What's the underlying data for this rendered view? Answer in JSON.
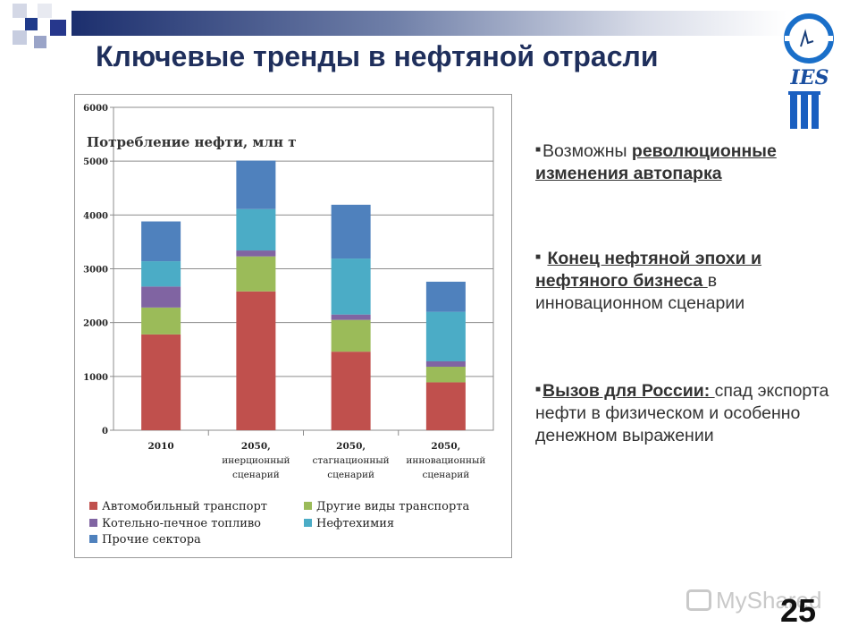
{
  "slide": {
    "title": "Ключевые тренды в нефтяной отрасли",
    "page_number": "25",
    "watermark": "MyShared",
    "logo_text": "IES"
  },
  "bullets": [
    {
      "plain_before": "Возможны ",
      "emphasis": "революционные изменения автопарка",
      "plain_after": ""
    },
    {
      "plain_before": " ",
      "emphasis": "Конец нефтяной эпохи и нефтяного бизнеса ",
      "plain_after": "в инновационном сценарии"
    },
    {
      "plain_before": "",
      "emphasis": "Вызов для России:  ",
      "plain_after": "спад экспорта нефти в физическом и особенно денежном выражении"
    }
  ],
  "chart_data": {
    "type": "bar",
    "stacked": true,
    "title": "Потребление нефти, млн т",
    "ylim": [
      0,
      6000
    ],
    "yticks": [
      "0",
      "1000",
      "2000",
      "3000",
      "4000",
      "5000",
      "6000"
    ],
    "grid": true,
    "legend_position": "bottom",
    "categories": [
      [
        "2010"
      ],
      [
        "2050,",
        "инерционный",
        "сценарий"
      ],
      [
        "2050,",
        "стагнационный",
        "сценарий"
      ],
      [
        "2050,",
        "инновационный",
        "сценарий"
      ]
    ],
    "series": [
      {
        "name": "Автомобильный транспорт",
        "color": "#c0504d",
        "values": [
          1780,
          2580,
          1460,
          890
        ]
      },
      {
        "name": "Другие виды транспорта",
        "color": "#9bbb59",
        "values": [
          500,
          650,
          590,
          290
        ]
      },
      {
        "name": "Котельно-печное топливо",
        "color": "#8064a2",
        "values": [
          390,
          110,
          100,
          100
        ]
      },
      {
        "name": "Нефтехимия",
        "color": "#4bacc6",
        "values": [
          470,
          770,
          1040,
          920
        ]
      },
      {
        "name": "Прочие сектора",
        "color": "#4f81bd",
        "values": [
          740,
          900,
          1000,
          560
        ]
      }
    ]
  }
}
